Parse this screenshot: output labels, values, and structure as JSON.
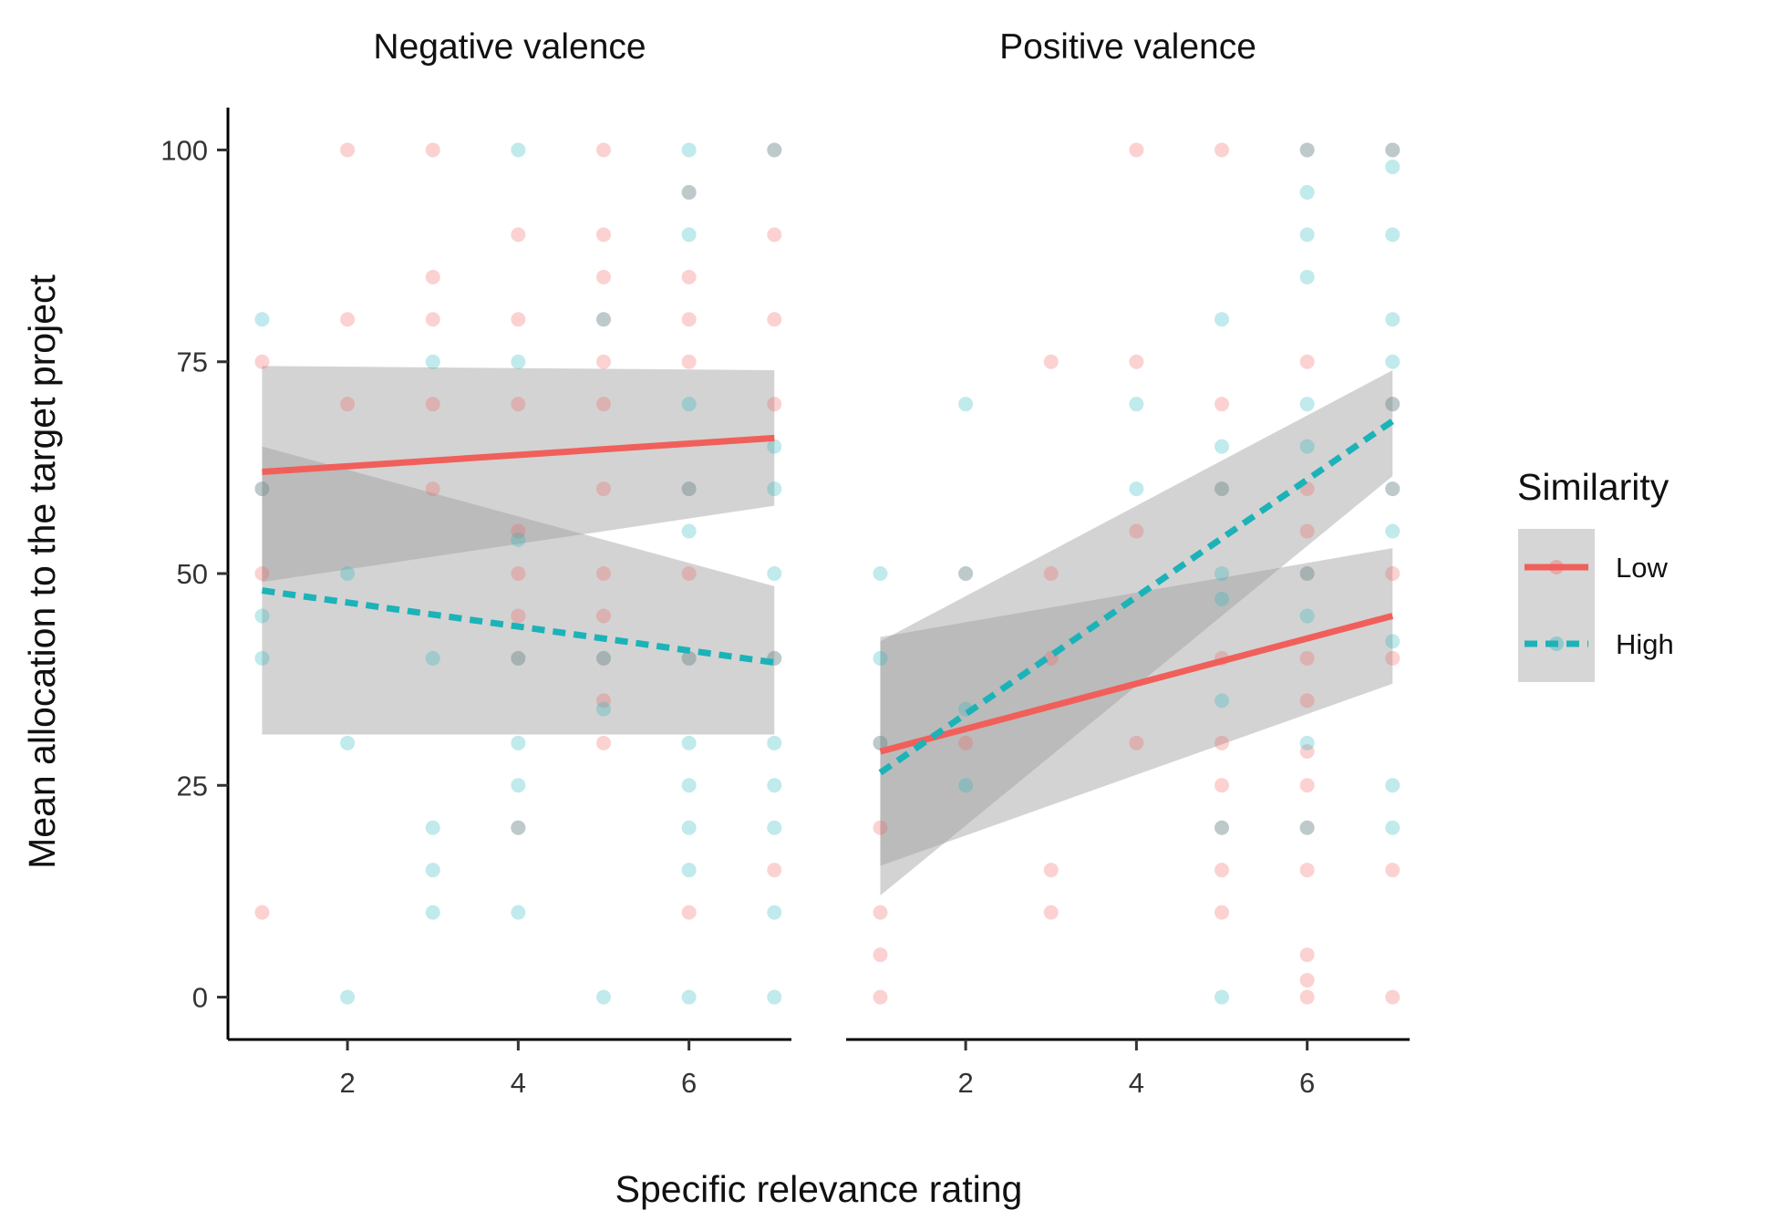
{
  "chart_data": {
    "type": "scatter",
    "xlabel": "Specific relevance rating",
    "ylabel": "Mean allocation to the target project",
    "xlim": [
      0.6,
      7.2
    ],
    "ylim": [
      -5,
      105
    ],
    "xticks": [
      2,
      4,
      6
    ],
    "yticks": [
      0,
      25,
      50,
      75,
      100
    ],
    "grid": false,
    "legend": {
      "title": "Similarity",
      "position": "right",
      "entries": [
        {
          "label": "Low",
          "color": "#F15F5B",
          "line": "solid"
        },
        {
          "label": "High",
          "color": "#1BB3B8",
          "line": "dashed"
        }
      ]
    },
    "colors": {
      "Low": "#F15F5B",
      "High": "#1BB3B8",
      "band": "#9E9E9E"
    },
    "panels": [
      {
        "title": "Negative valence",
        "fits": [
          {
            "series": "Low",
            "x": [
              1,
              7
            ],
            "y": [
              62,
              66
            ],
            "ci_lower": [
              49,
              58
            ],
            "ci_upper": [
              74.5,
              74
            ]
          },
          {
            "series": "High",
            "x": [
              1,
              7
            ],
            "y": [
              48,
              39.5
            ],
            "ci_lower": [
              31,
              31
            ],
            "ci_upper": [
              65,
              48.5
            ]
          }
        ],
        "points": [
          {
            "series": "Low",
            "x": [
              1,
              1,
              1,
              1,
              2,
              2,
              2,
              3,
              3,
              3,
              3,
              3,
              4,
              4,
              4,
              4,
              4,
              4,
              4,
              4,
              5,
              5,
              5,
              5,
              5,
              5,
              5,
              5,
              5,
              5,
              5,
              5,
              6,
              6,
              6,
              6,
              6,
              6,
              6,
              6,
              7,
              7,
              7,
              7,
              7,
              7
            ],
            "y": [
              75,
              60,
              50,
              10,
              100,
              80,
              70,
              100,
              85,
              80,
              70,
              60,
              90,
              80,
              70,
              55,
              50,
              45,
              40,
              20,
              100,
              90,
              85,
              80,
              75,
              70,
              60,
              50,
              45,
              40,
              35,
              30,
              85,
              80,
              75,
              60,
              50,
              40,
              10,
              95,
              100,
              90,
              80,
              70,
              40,
              15
            ]
          },
          {
            "series": "High",
            "x": [
              1,
              1,
              1,
              1,
              2,
              2,
              2,
              3,
              3,
              3,
              3,
              3,
              4,
              4,
              4,
              4,
              4,
              4,
              4,
              4,
              5,
              5,
              5,
              5,
              6,
              6,
              6,
              6,
              6,
              6,
              6,
              6,
              6,
              6,
              6,
              6,
              7,
              7,
              7,
              7,
              7,
              7,
              7,
              7,
              7,
              7
            ],
            "y": [
              80,
              60,
              45,
              40,
              50,
              30,
              0,
              75,
              40,
              15,
              10,
              20,
              100,
              75,
              54,
              40,
              30,
              25,
              20,
              10,
              80,
              40,
              34,
              0,
              100,
              95,
              90,
              70,
              60,
              55,
              40,
              30,
              25,
              20,
              15,
              0,
              100,
              65,
              60,
              50,
              40,
              30,
              25,
              20,
              10,
              0
            ]
          }
        ]
      },
      {
        "title": "Positive valence",
        "fits": [
          {
            "series": "Low",
            "x": [
              1,
              7
            ],
            "y": [
              29,
              45
            ],
            "ci_lower": [
              15.5,
              37
            ],
            "ci_upper": [
              42.5,
              53
            ]
          },
          {
            "series": "High",
            "x": [
              1,
              7
            ],
            "y": [
              26.5,
              68
            ],
            "ci_lower": [
              12,
              61.5
            ],
            "ci_upper": [
              42,
              74
            ]
          }
        ],
        "points": [
          {
            "series": "Low",
            "x": [
              1,
              1,
              1,
              1,
              1,
              2,
              2,
              3,
              3,
              3,
              3,
              3,
              4,
              4,
              4,
              4,
              5,
              5,
              5,
              5,
              5,
              5,
              5,
              5,
              5,
              6,
              6,
              6,
              6,
              6,
              6,
              6,
              6,
              6,
              6,
              6,
              6,
              6,
              6,
              7,
              7,
              7,
              7,
              7,
              7,
              7
            ],
            "y": [
              30,
              20,
              10,
              5,
              0,
              50,
              30,
              75,
              50,
              40,
              15,
              10,
              100,
              75,
              55,
              30,
              100,
              70,
              40,
              30,
              25,
              20,
              15,
              10,
              60,
              100,
              75,
              60,
              55,
              50,
              40,
              35,
              29,
              25,
              20,
              15,
              5,
              2,
              0,
              70,
              60,
              50,
              40,
              15,
              0,
              100
            ]
          },
          {
            "series": "High",
            "x": [
              1,
              1,
              1,
              2,
              2,
              2,
              2,
              4,
              4,
              5,
              5,
              5,
              5,
              5,
              5,
              5,
              5,
              6,
              6,
              6,
              6,
              6,
              6,
              6,
              6,
              6,
              6,
              7,
              7,
              7,
              7,
              7,
              7,
              7,
              7,
              7,
              7,
              7
            ],
            "y": [
              50,
              40,
              30,
              70,
              50,
              34,
              25,
              70,
              60,
              80,
              65,
              60,
              50,
              47,
              35,
              20,
              0,
              95,
              90,
              85,
              70,
              65,
              50,
              45,
              30,
              20,
              100,
              100,
              98,
              90,
              80,
              75,
              70,
              55,
              42,
              25,
              20,
              60
            ]
          }
        ]
      }
    ]
  }
}
